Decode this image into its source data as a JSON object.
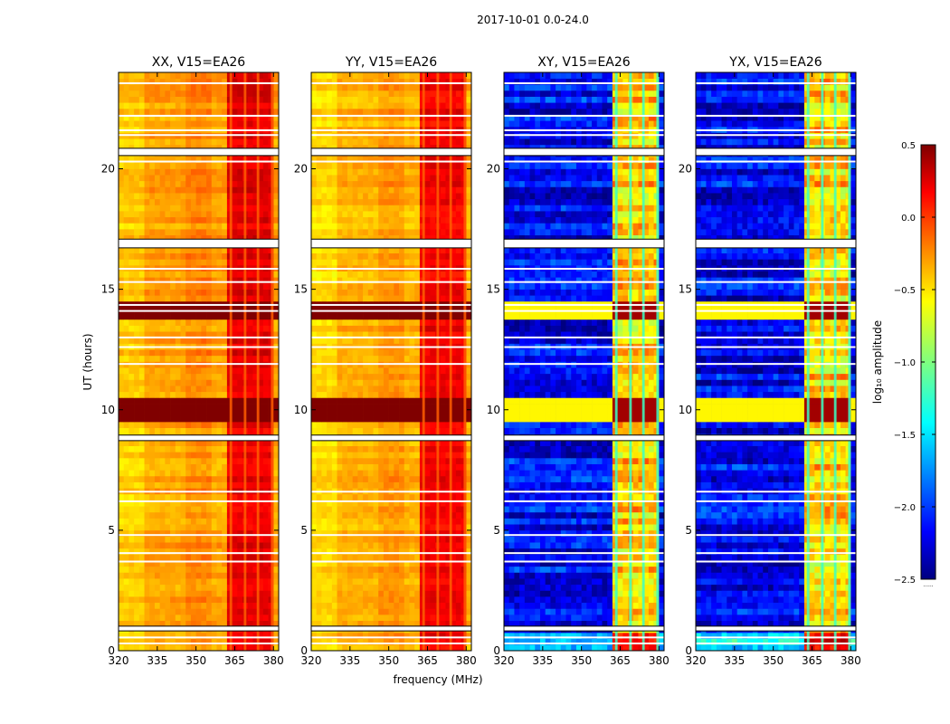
{
  "figure": {
    "suptitle": "2017-10-01 0.0-24.0",
    "xlabel": "frequency (MHz)",
    "ylabel": "UT (hours)",
    "colorbar_label": "log₁₀ amplitude",
    "colorbar_note": "......"
  },
  "chart_data": {
    "type": "heatmap",
    "title": "2017-10-01 0.0-24.0",
    "xlabel": "frequency (MHz)",
    "ylabel": "UT (hours)",
    "xlim": [
      320,
      382
    ],
    "ylim": [
      0,
      24
    ],
    "xticks": [
      320,
      335,
      350,
      365,
      380
    ],
    "yticks": [
      0,
      5,
      10,
      15,
      20
    ],
    "colormap": "jet",
    "colorbar": {
      "label": "log10 amplitude",
      "range": [
        -2.5,
        0.5
      ],
      "ticks": [
        -2.5,
        -2.0,
        -1.5,
        -1.0,
        -0.5,
        0.0,
        0.5
      ],
      "tick_labels": [
        "−2.5",
        "−2.0",
        "−1.5",
        "−1.0",
        "−0.5",
        "0.0",
        "0.5"
      ]
    },
    "rfi_band_mhz": [
      362,
      380
    ],
    "rfi_channels_mhz": [
      [
        363,
        364
      ],
      [
        368.5,
        369.5
      ],
      [
        373.5,
        374.5
      ],
      [
        379,
        380
      ]
    ],
    "gaps_ut": [
      [
        0.82,
        1.02
      ],
      [
        8.72,
        8.95
      ],
      [
        16.72,
        17.08
      ],
      [
        20.55,
        20.85
      ]
    ],
    "flagged_rows_ut": [
      0.3,
      0.55,
      3.7,
      4.05,
      4.8,
      6.2,
      6.6,
      11.9,
      12.6,
      13.0,
      14.1,
      14.35,
      15.3,
      15.85,
      20.3,
      21.4,
      21.6,
      22.2,
      23.55
    ],
    "high_activity_ut": [
      [
        9.4,
        10.6
      ],
      [
        13.8,
        14.6
      ]
    ],
    "panels": [
      {
        "title": "XX, V15=EA26",
        "pol": "XX",
        "base_log_amp": -0.35,
        "rfi_log_amp": 0.2
      },
      {
        "title": "YY, V15=EA26",
        "pol": "YY",
        "base_log_amp": -0.4,
        "rfi_log_amp": 0.15
      },
      {
        "title": "XY, V15=EA26",
        "pol": "XY",
        "base_log_amp": -2.15,
        "rfi_log_amp": -0.5
      },
      {
        "title": "YX, V15=EA26",
        "pol": "YX",
        "base_log_amp": -2.15,
        "rfi_log_amp": -0.5
      }
    ]
  }
}
